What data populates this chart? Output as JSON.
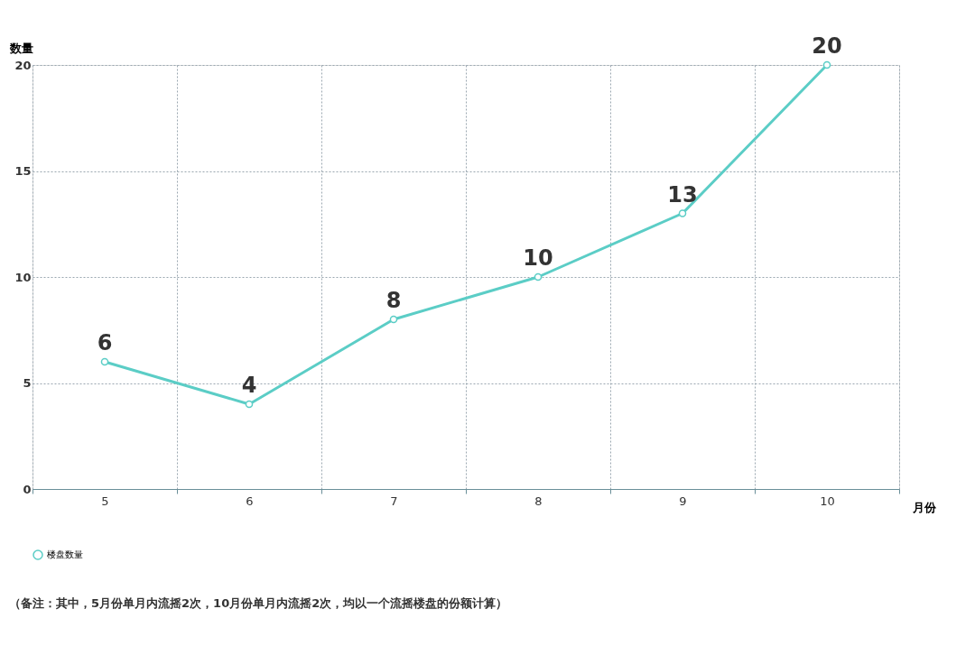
{
  "chart_data": {
    "type": "line",
    "xlabel": "月份",
    "ylabel": "数量",
    "categories": [
      "5",
      "6",
      "7",
      "8",
      "9",
      "10"
    ],
    "series": [
      {
        "name": "楼盘数量",
        "color": "#5bcdc6",
        "values": [
          6,
          4,
          8,
          10,
          13,
          20
        ]
      }
    ],
    "ylim": [
      0,
      20
    ],
    "yticks": [
      0,
      5,
      10,
      15,
      20
    ],
    "grid": true,
    "legend": "bottom",
    "marker": "circle",
    "line_style": "solid",
    "data_labels": true,
    "annotations": [
      "（备注：其中，5月份单月内流摇2次，10月份单月内流摇2次，均以一个流摇楼盘的份额计算）"
    ]
  }
}
